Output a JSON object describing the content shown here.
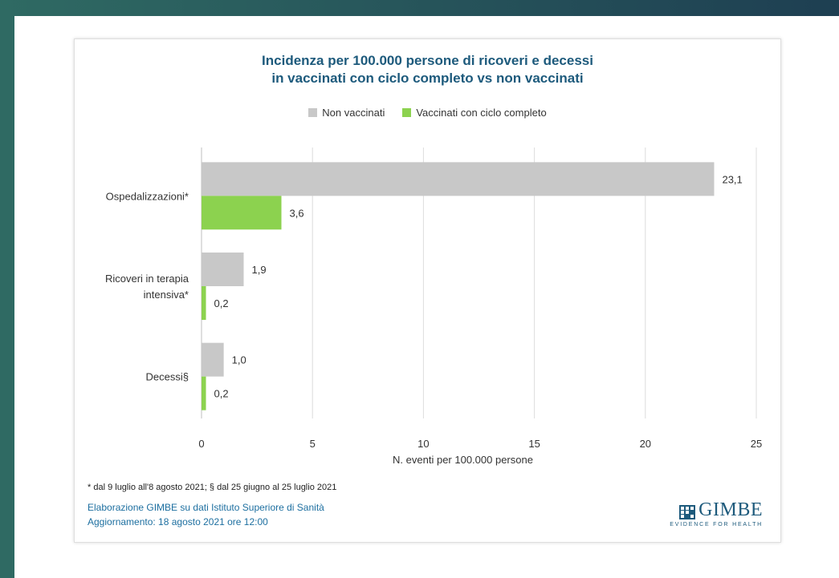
{
  "chart_data": {
    "type": "bar",
    "orientation": "horizontal",
    "title_line1": "Incidenza per 100.000 persone di ricoveri e decessi",
    "title_line2": "in vaccinati con ciclo completo vs non vaccinati",
    "categories": [
      {
        "label_lines": [
          "Ospedalizzazioni*"
        ]
      },
      {
        "label_lines": [
          "Ricoveri in terapia",
          "intensiva*"
        ]
      },
      {
        "label_lines": [
          "Decessi§"
        ]
      }
    ],
    "series": [
      {
        "name": "Non vaccinati",
        "color": "#c8c8c8",
        "values": [
          23.1,
          1.9,
          1.0
        ],
        "labels": [
          "23,1",
          "1,9",
          "1,0"
        ]
      },
      {
        "name": "Vaccinati con ciclo completo",
        "color": "#8cd24f",
        "values": [
          3.6,
          0.2,
          0.2
        ],
        "labels": [
          "3,6",
          "0,2",
          "0,2"
        ]
      }
    ],
    "xlim": [
      0,
      25
    ],
    "xticks": [
      0,
      5,
      10,
      15,
      20,
      25
    ],
    "xlabel": "N. eventi per 100.000 persone",
    "grid": "vertical",
    "legend_position": "top"
  },
  "footnote": "* dal 9 luglio all'8 agosto 2021; § dal 25 giugno al 25 luglio 2021",
  "credit_line1": "Elaborazione GIMBE su dati Istituto Superiore di Sanità",
  "credit_line2": "Aggiornamento: 18 agosto 2021 ore 12:00",
  "logo": {
    "name": "GIMBE",
    "tagline": "EVIDENCE FOR HEALTH"
  }
}
